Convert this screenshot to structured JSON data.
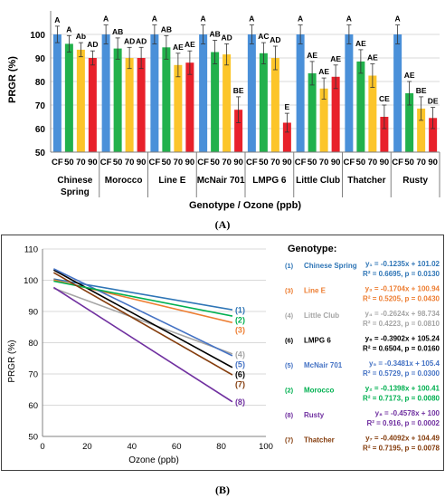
{
  "chart_data": [
    {
      "panel_label": "(A)",
      "type": "bar",
      "ylabel": "PRGR (%)",
      "xlabel": "Genotype / Ozone (ppb)",
      "ylim": [
        50,
        100
      ],
      "yticks": [
        50,
        60,
        70,
        80,
        90,
        100
      ],
      "grid": true,
      "categories": [
        "CF",
        "50",
        "70",
        "90"
      ],
      "bar_colors": [
        "#4a90d9",
        "#22b14c",
        "#fcc52a",
        "#e8212b"
      ],
      "groups": [
        {
          "name": "Chinese Spring",
          "values": [
            100,
            96,
            93.5,
            90
          ],
          "errors": [
            3.5,
            3.5,
            3,
            3
          ],
          "letters": [
            "A",
            "A",
            "Ab",
            "AD"
          ]
        },
        {
          "name": "Morocco",
          "values": [
            100,
            94,
            90,
            90
          ],
          "errors": [
            4,
            4.5,
            4.5,
            4.5
          ],
          "letters": [
            "A",
            "AB",
            "AD",
            "AD"
          ]
        },
        {
          "name": "Line E",
          "values": [
            100,
            94.5,
            87,
            88
          ],
          "errors": [
            4,
            5,
            5,
            5
          ],
          "letters": [
            "A",
            "AB",
            "AE",
            "AE"
          ]
        },
        {
          "name": "McNair 701",
          "values": [
            100,
            92.5,
            91.5,
            68
          ],
          "errors": [
            4,
            5,
            4.5,
            5.5
          ],
          "letters": [
            "A",
            "AB",
            "AD",
            "BE"
          ]
        },
        {
          "name": "LMPG 6",
          "values": [
            100,
            92,
            90,
            62.5
          ],
          "errors": [
            4,
            4.5,
            5,
            4
          ],
          "letters": [
            "A",
            "AC",
            "AD",
            "E"
          ]
        },
        {
          "name": "Little Club",
          "values": [
            100,
            83.5,
            77,
            82
          ],
          "errors": [
            4,
            5,
            4.5,
            5
          ],
          "letters": [
            "A",
            "AE",
            "AE",
            "AE"
          ]
        },
        {
          "name": "Thatcher",
          "values": [
            100,
            88.5,
            82.5,
            65
          ],
          "errors": [
            4,
            5,
            5,
            5
          ],
          "letters": [
            "A",
            "AE",
            "AE",
            "CE"
          ]
        },
        {
          "name": "Rusty",
          "values": [
            100,
            75,
            68.5,
            64.5
          ],
          "errors": [
            4,
            5,
            5,
            4.5
          ],
          "letters": [
            "A",
            "AE",
            "BE",
            "DE"
          ]
        }
      ]
    },
    {
      "panel_label": "(B)",
      "type": "line",
      "xlabel": "Ozone (ppb)",
      "ylabel": "PRGR (%)",
      "xlim": [
        0,
        100
      ],
      "ylim": [
        50,
        110
      ],
      "xticks": [
        0,
        20,
        40,
        60,
        80,
        100
      ],
      "yticks": [
        50,
        60,
        70,
        80,
        90,
        100,
        110
      ],
      "x_range": [
        5,
        85
      ],
      "grid": true,
      "legend_title": "Genotype:",
      "series": [
        {
          "id": "(1)",
          "name": "Chinese Spring",
          "color": "#2e75b6",
          "slope": -0.1235,
          "intercept": 101.02,
          "eq": "y₁ = -0.1235x + 101.02",
          "stats": "R² = 0.6695, p = 0.0130"
        },
        {
          "id": "(3)",
          "name": "Line E",
          "color": "#ed7d31",
          "slope": -0.1704,
          "intercept": 100.94,
          "eq": "y₃ = -0.1704x + 100.94",
          "stats": "R² = 0.5205, p = 0.0430"
        },
        {
          "id": "(4)",
          "name": "Little Club",
          "color": "#a5a5a5",
          "slope": -0.2624,
          "intercept": 98.734,
          "eq": "y₄ = -0.2624x + 98.734",
          "stats": "R² = 0.4223, p = 0.0810"
        },
        {
          "id": "(6)",
          "name": "LMPG 6",
          "color": "#000000",
          "slope": -0.3902,
          "intercept": 105.24,
          "eq": "y₆ = -0.3902x + 105.24",
          "stats": "R² = 0.6504, p = 0.0160"
        },
        {
          "id": "(5)",
          "name": "McNair 701",
          "color": "#4472c4",
          "slope": -0.3481,
          "intercept": 105.4,
          "eq": "y₅ = -0.3481x + 105.4",
          "stats": "R² = 0.5729, p = 0.0300"
        },
        {
          "id": "(2)",
          "name": "Morocco",
          "color": "#00b050",
          "slope": -0.1398,
          "intercept": 100.41,
          "eq": "y₂ = -0.1398x + 100.41",
          "stats": "R² = 0.7173, p = 0.0080"
        },
        {
          "id": "(8)",
          "name": "Rusty",
          "color": "#7030a0",
          "slope": -0.4578,
          "intercept": 100,
          "eq": "y₈ = -0.4578x + 100",
          "stats": "R² = 0.916, p = 0.0002"
        },
        {
          "id": "(7)",
          "name": "Thatcher",
          "color": "#843c0c",
          "slope": -0.4092,
          "intercept": 104.49,
          "eq": "y₇ = -0.4092x + 104.49",
          "stats": "R² = 0.7195, p = 0.0078"
        }
      ]
    }
  ]
}
